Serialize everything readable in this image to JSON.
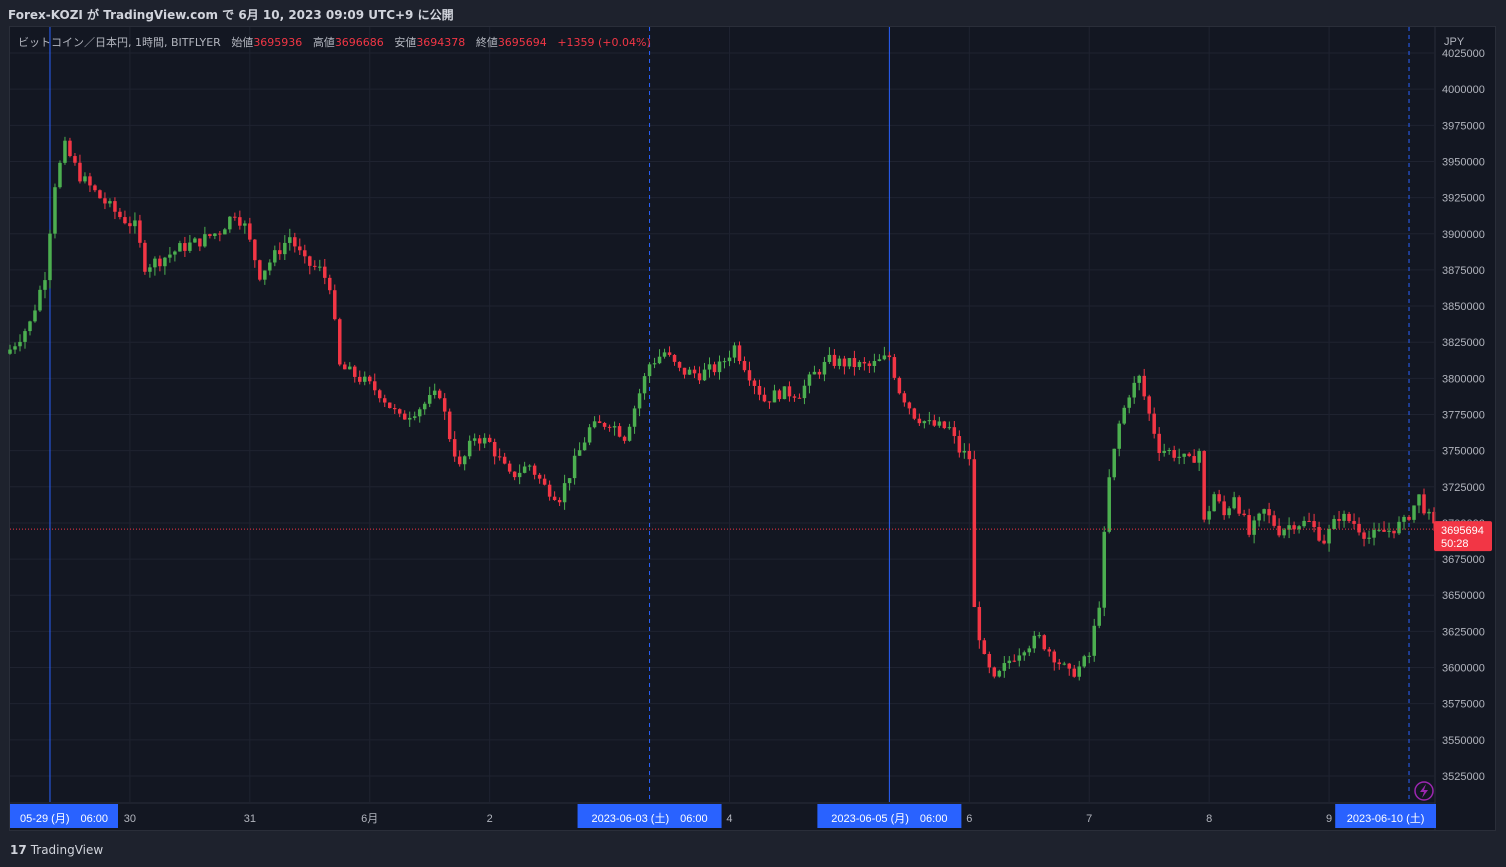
{
  "header": {
    "published_text": "Forex-KOZI が TradingView.com で 6月 10, 2023 09:09 UTC+9 に公開"
  },
  "legend": {
    "symbol": "ビットコイン／日本円, 1時間, BITFLYER",
    "open_label": "始値",
    "open": "3695936",
    "high_label": "高値",
    "high": "3696686",
    "low_label": "安値",
    "low": "3694378",
    "close_label": "終値",
    "close": "3695694",
    "change": "+1359 (+0.04%)"
  },
  "footer": {
    "brand": "TradingView",
    "logo_glyph": "17"
  },
  "chart_data": {
    "type": "candlestick",
    "currency": "JPY",
    "y_ticks": [
      3525000,
      3550000,
      3575000,
      3600000,
      3625000,
      3650000,
      3675000,
      3700000,
      3725000,
      3750000,
      3775000,
      3800000,
      3825000,
      3850000,
      3875000,
      3900000,
      3925000,
      3950000,
      3975000,
      4000000,
      4025000
    ],
    "y_tick_labels": [
      "3525000",
      "3550000",
      "3575000",
      "3600000",
      "3625000",
      "3650000",
      "3675000",
      "3700000",
      "3725000",
      "3750000",
      "3775000",
      "3800000",
      "3825000",
      "3850000",
      "3875000",
      "3900000",
      "3925000",
      "3950000",
      "3975000",
      "4000000",
      "4025000"
    ],
    "ylim": [
      3507000,
      4043000
    ],
    "xlim": [
      0,
      285
    ],
    "x_ticks": [
      {
        "i": 24,
        "label": "30"
      },
      {
        "i": 48,
        "label": "31"
      },
      {
        "i": 72,
        "label": "6月"
      },
      {
        "i": 96,
        "label": "2"
      },
      {
        "i": 144,
        "label": "4"
      },
      {
        "i": 192,
        "label": "6"
      },
      {
        "i": 216,
        "label": "7"
      },
      {
        "i": 240,
        "label": "8"
      },
      {
        "i": 264,
        "label": "9"
      }
    ],
    "time_highlights": [
      {
        "i": 8,
        "label": "05-29 (月)　06:00"
      },
      {
        "i": 128,
        "label": "2023-06-03 (土)　06:00"
      },
      {
        "i": 176,
        "label": "2023-06-05 (月)　06:00"
      },
      {
        "i": 280,
        "label": "2023-06-10 (土)"
      }
    ],
    "vertical_lines": [
      {
        "i": 8,
        "style": "solid"
      },
      {
        "i": 128,
        "style": "dashed"
      },
      {
        "i": 176,
        "style": "solid"
      },
      {
        "i": 280,
        "style": "dashed"
      }
    ],
    "last_price": 3695694,
    "last_price_label": "3695694",
    "countdown": "50:28",
    "up_color": "#26a69a",
    "candle_up_color": "#4caf50",
    "down_color": "#f23645",
    "anchors": [
      [
        0,
        3820000
      ],
      [
        4,
        3838000
      ],
      [
        7,
        3872000
      ],
      [
        9,
        3935000
      ],
      [
        11,
        3960000
      ],
      [
        14,
        3940000
      ],
      [
        18,
        3925000
      ],
      [
        22,
        3912000
      ],
      [
        25,
        3905000
      ],
      [
        27,
        3878000
      ],
      [
        30,
        3882000
      ],
      [
        34,
        3890000
      ],
      [
        38,
        3895000
      ],
      [
        42,
        3902000
      ],
      [
        45,
        3915000
      ],
      [
        47,
        3905000
      ],
      [
        50,
        3872000
      ],
      [
        53,
        3885000
      ],
      [
        56,
        3898000
      ],
      [
        59,
        3880000
      ],
      [
        62,
        3875000
      ],
      [
        64,
        3865000
      ],
      [
        66,
        3808000
      ],
      [
        70,
        3800000
      ],
      [
        74,
        3790000
      ],
      [
        78,
        3772000
      ],
      [
        82,
        3780000
      ],
      [
        86,
        3790000
      ],
      [
        88,
        3760000
      ],
      [
        90,
        3738000
      ],
      [
        93,
        3760000
      ],
      [
        96,
        3755000
      ],
      [
        100,
        3732000
      ],
      [
        104,
        3740000
      ],
      [
        107,
        3725000
      ],
      [
        110,
        3718000
      ],
      [
        113,
        3742000
      ],
      [
        116,
        3765000
      ],
      [
        120,
        3770000
      ],
      [
        123,
        3760000
      ],
      [
        126,
        3790000
      ],
      [
        128,
        3810000
      ],
      [
        131,
        3818000
      ],
      [
        134,
        3805000
      ],
      [
        138,
        3803000
      ],
      [
        142,
        3808000
      ],
      [
        145,
        3822000
      ],
      [
        148,
        3803000
      ],
      [
        151,
        3785000
      ],
      [
        154,
        3790000
      ],
      [
        158,
        3790000
      ],
      [
        161,
        3803000
      ],
      [
        164,
        3812000
      ],
      [
        168,
        3810000
      ],
      [
        172,
        3808000
      ],
      [
        176,
        3815000
      ],
      [
        178,
        3792000
      ],
      [
        181,
        3775000
      ],
      [
        184,
        3768000
      ],
      [
        188,
        3765000
      ],
      [
        190,
        3750000
      ],
      [
        192,
        3745000
      ],
      [
        193,
        3640000
      ],
      [
        195,
        3605000
      ],
      [
        197,
        3590000
      ],
      [
        200,
        3605000
      ],
      [
        203,
        3615000
      ],
      [
        206,
        3620000
      ],
      [
        209,
        3608000
      ],
      [
        212,
        3595000
      ],
      [
        214,
        3600000
      ],
      [
        216,
        3608000
      ],
      [
        218,
        3645000
      ],
      [
        219,
        3690000
      ],
      [
        220,
        3730000
      ],
      [
        222,
        3768000
      ],
      [
        224,
        3790000
      ],
      [
        226,
        3800000
      ],
      [
        228,
        3775000
      ],
      [
        230,
        3752000
      ],
      [
        233,
        3748000
      ],
      [
        236,
        3742000
      ],
      [
        238,
        3750000
      ],
      [
        239,
        3700000
      ],
      [
        241,
        3720000
      ],
      [
        243,
        3705000
      ],
      [
        245,
        3720000
      ],
      [
        248,
        3692000
      ],
      [
        251,
        3708000
      ],
      [
        254,
        3695000
      ],
      [
        257,
        3700000
      ],
      [
        260,
        3700000
      ],
      [
        263,
        3688000
      ],
      [
        266,
        3705000
      ],
      [
        269,
        3700000
      ],
      [
        272,
        3690000
      ],
      [
        276,
        3695000
      ],
      [
        279,
        3700000
      ],
      [
        282,
        3718000
      ],
      [
        285,
        3696000
      ]
    ]
  }
}
